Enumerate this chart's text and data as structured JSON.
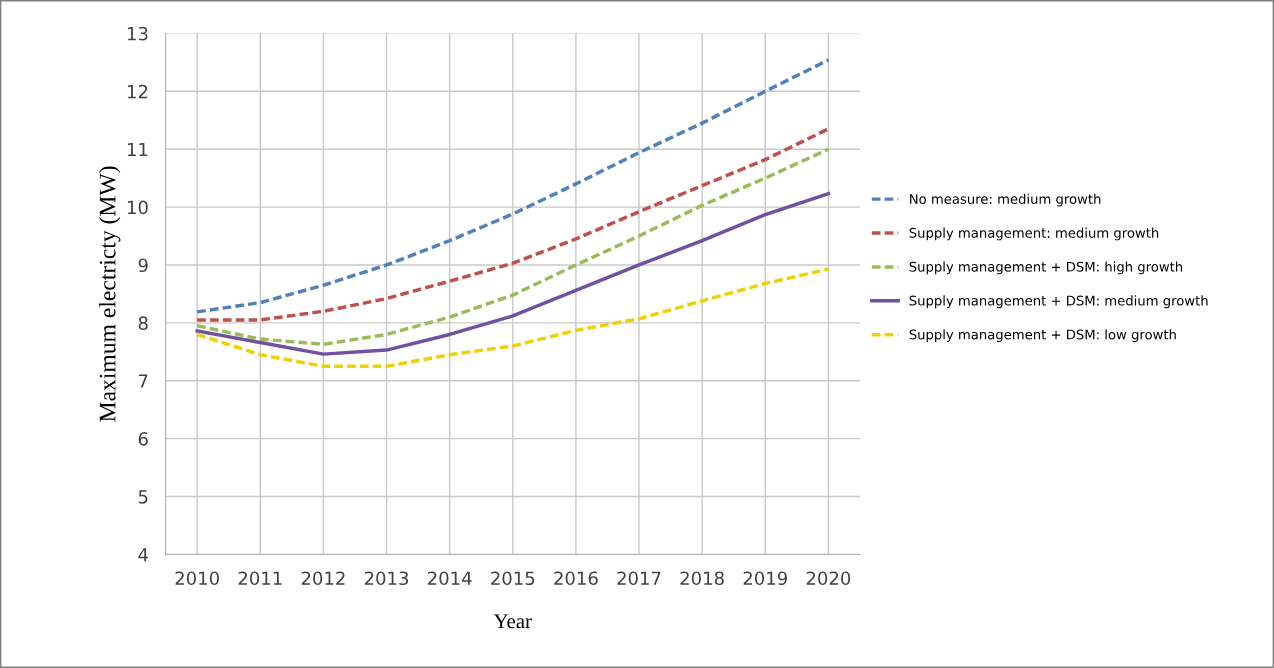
{
  "chart_data": {
    "type": "line",
    "xlabel": "Year",
    "ylabel": "Maximum electricty (MW)",
    "categories": [
      "2010",
      "2011",
      "2012",
      "2013",
      "2014",
      "2015",
      "2016",
      "2017",
      "2018",
      "2019",
      "2020"
    ],
    "ylim": [
      4,
      13
    ],
    "yticks": [
      {
        "value": 4,
        "label": "4"
      },
      5,
      6,
      7,
      8,
      9,
      10,
      11,
      12,
      13
    ],
    "grid": true,
    "legend": "right",
    "series": [
      {
        "name": "No measure: medium growth",
        "color": "#4f81bd",
        "line_style": "dashed",
        "values": [
          8.19,
          8.35,
          8.65,
          9.0,
          9.42,
          9.88,
          10.4,
          10.94,
          11.45,
          12.0,
          12.54
        ]
      },
      {
        "name": "Supply management: medium growth",
        "color": "#c0504d",
        "line_style": "dashed",
        "values": [
          8.05,
          8.05,
          8.2,
          8.42,
          8.72,
          9.03,
          9.45,
          9.92,
          10.37,
          10.82,
          11.35
        ]
      },
      {
        "name": "Supply management + DSM: high growth",
        "color": "#9bbb59",
        "line_style": "dashed",
        "values": [
          7.95,
          7.72,
          7.63,
          7.8,
          8.1,
          8.48,
          9.0,
          9.5,
          10.03,
          10.5,
          11.0
        ]
      },
      {
        "name": "Supply management + DSM: medium growth",
        "color": "#7050a0",
        "line_style": "solid",
        "values": [
          7.86,
          7.66,
          7.46,
          7.53,
          7.8,
          8.12,
          8.56,
          9.0,
          9.42,
          9.87,
          10.23
        ]
      },
      {
        "name": "Supply management + DSM: low growth",
        "color": "#f0d000",
        "line_style": "dashed",
        "values": [
          7.8,
          7.45,
          7.25,
          7.25,
          7.45,
          7.6,
          7.87,
          8.07,
          8.38,
          8.68,
          8.93
        ]
      }
    ]
  }
}
